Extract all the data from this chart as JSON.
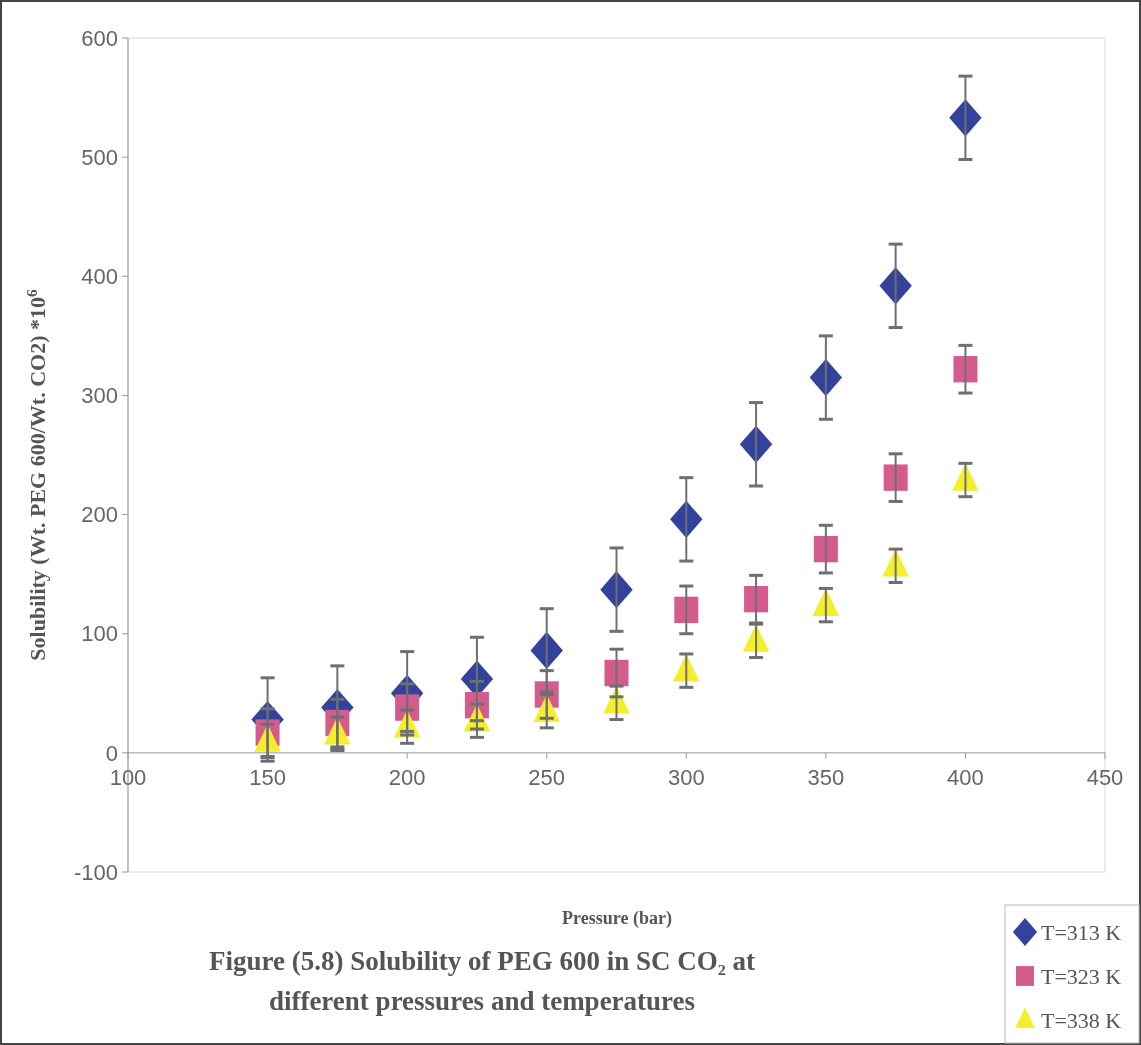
{
  "chart_data": {
    "type": "scatter",
    "title": "Figure (5.8) Solubility of PEG 600 in SC CO₂ at different pressures and temperatures",
    "xlabel": "Pressure (bar)",
    "ylabel": "Solubility (Wt. PEG 600/Wt. CO2) *10$^{6}$",
    "x": [
      150,
      175,
      200,
      225,
      250,
      275,
      300,
      325,
      350,
      375,
      400
    ],
    "xlim": [
      100,
      450
    ],
    "xticks": [
      100,
      150,
      200,
      250,
      300,
      350,
      400,
      450
    ],
    "ylim": [
      -100,
      600
    ],
    "yticks": [
      -100,
      0,
      100,
      200,
      300,
      400,
      500,
      600
    ],
    "grid": false,
    "legend": "bottom right",
    "series": [
      {
        "name": "T=313 K",
        "color": "#33439c",
        "marker": "diamond",
        "values": [
          28,
          38,
          50,
          62,
          86,
          137,
          196,
          259,
          315,
          392,
          533
        ],
        "errors": [
          35,
          35,
          35,
          35,
          35,
          35,
          35,
          35,
          35,
          35,
          35
        ]
      },
      {
        "name": "T=323 K",
        "color": "#d45c8c",
        "marker": "square",
        "values": [
          17,
          25,
          38,
          40,
          49,
          67,
          120,
          129,
          171,
          231,
          322
        ],
        "errors": [
          20,
          20,
          20,
          20,
          20,
          20,
          20,
          20,
          20,
          20,
          20
        ]
      },
      {
        "name": "T=338 K",
        "color": "#f5ee2a",
        "marker": "triangle",
        "values": [
          10,
          16,
          22,
          27,
          35,
          42,
          69,
          94,
          124,
          157,
          229
        ],
        "errors": [
          14,
          14,
          14,
          14,
          14,
          14,
          14,
          14,
          14,
          14,
          14
        ]
      }
    ]
  }
}
